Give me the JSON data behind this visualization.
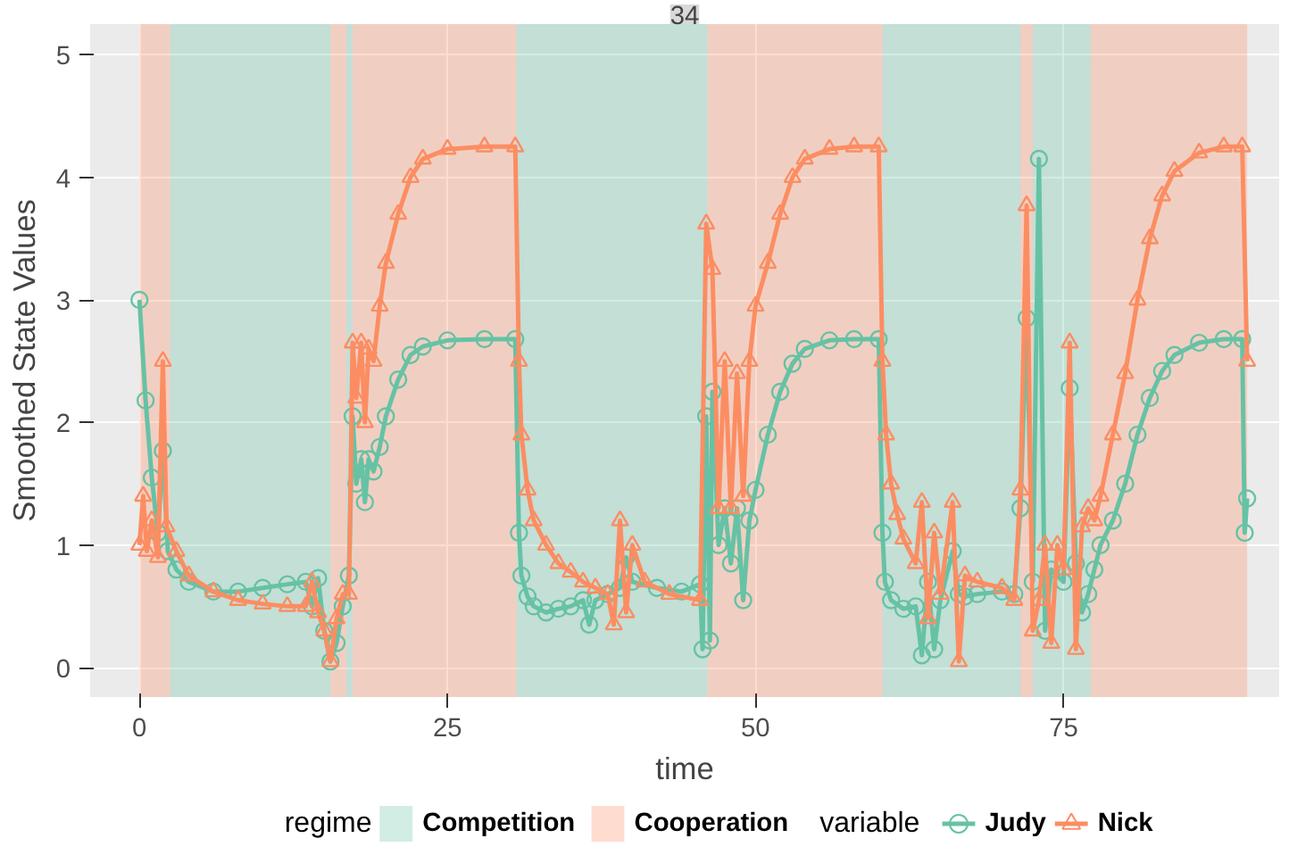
{
  "chart_data": {
    "type": "line",
    "title": "34",
    "xlabel": "time",
    "ylabel": "Smoothed State Values",
    "legend_title": "regime",
    "annotations": [
      "variable"
    ],
    "xlim": [
      -4,
      92.5
    ],
    "ylim": [
      -0.24,
      5.25
    ],
    "xticks": [
      0,
      25,
      50,
      75
    ],
    "yticks": [
      0,
      1,
      2,
      3,
      4,
      5
    ],
    "grid": true,
    "legend": "bottom",
    "bands": [
      {
        "axis": "x",
        "from": 0,
        "to": 2.5,
        "color": "#fc8d62"
      },
      {
        "axis": "x",
        "from": 2.5,
        "to": 15.5,
        "label": "Competition",
        "color": "#66c2a5"
      },
      {
        "axis": "x",
        "from": 15.5,
        "to": 16.8,
        "label": "Cooperation",
        "color": "#fc8d62"
      },
      {
        "axis": "x",
        "from": 16.8,
        "to": 17.3,
        "color": "#66c2a5"
      },
      {
        "axis": "x",
        "from": 17.3,
        "to": 30.6,
        "color": "#fc8d62"
      },
      {
        "axis": "x",
        "from": 30.6,
        "to": 46.1,
        "color": "#66c2a5"
      },
      {
        "axis": "x",
        "from": 46.1,
        "to": 60.3,
        "color": "#fc8d62"
      },
      {
        "axis": "x",
        "from": 60.3,
        "to": 71.5,
        "color": "#66c2a5"
      },
      {
        "axis": "x",
        "from": 71.5,
        "to": 72.5,
        "color": "#fc8d62"
      },
      {
        "axis": "x",
        "from": 72.5,
        "to": 77.2,
        "color": "#66c2a5"
      },
      {
        "axis": "x",
        "from": 77.2,
        "to": 89.9,
        "color": "#fc8d62"
      }
    ],
    "series": [
      {
        "name": "Judy",
        "color": "#66c2a5",
        "marker": "circle",
        "x": [
          0,
          0.5,
          1,
          1.5,
          1.9,
          2.3,
          3,
          4,
          6,
          8,
          10,
          12,
          13.5,
          14,
          14.5,
          15,
          15.5,
          16,
          16.5,
          17,
          17.3,
          17.6,
          18,
          18.3,
          18.6,
          19,
          19.5,
          20,
          21,
          22,
          23,
          25,
          28,
          30.5,
          30.8,
          31,
          31.5,
          32,
          33,
          34,
          35,
          36,
          36.5,
          37,
          38,
          39,
          39.5,
          40,
          42,
          44,
          45.5,
          45.7,
          46,
          46.3,
          46.5,
          47,
          47.5,
          48,
          48.5,
          49,
          49.5,
          50,
          51,
          52,
          53,
          54,
          56,
          58,
          60,
          60.3,
          60.5,
          61,
          62,
          63,
          63.5,
          64,
          64.5,
          65,
          66,
          66.5,
          67,
          68,
          70,
          71,
          71.5,
          72,
          72.5,
          73,
          73.5,
          74,
          75,
          75.5,
          76,
          76.5,
          77,
          77.5,
          78,
          79,
          80,
          81,
          82,
          83,
          84,
          86,
          88,
          89.5,
          89.7,
          89.9
        ],
        "values": [
          3.0,
          2.18,
          1.55,
          1.1,
          1.77,
          0.95,
          0.8,
          0.7,
          0.62,
          0.62,
          0.65,
          0.68,
          0.7,
          0.5,
          0.73,
          0.3,
          0.05,
          0.2,
          0.5,
          0.75,
          2.05,
          1.5,
          1.7,
          1.35,
          1.7,
          1.6,
          1.8,
          2.05,
          2.35,
          2.55,
          2.62,
          2.67,
          2.68,
          2.68,
          1.1,
          0.75,
          0.58,
          0.5,
          0.45,
          0.48,
          0.5,
          0.55,
          0.35,
          0.55,
          0.6,
          0.65,
          0.9,
          0.7,
          0.65,
          0.62,
          0.68,
          0.15,
          2.05,
          0.22,
          2.25,
          1.0,
          1.3,
          0.85,
          1.3,
          0.55,
          1.2,
          1.45,
          1.9,
          2.25,
          2.48,
          2.6,
          2.67,
          2.68,
          2.68,
          1.1,
          0.7,
          0.55,
          0.48,
          0.5,
          0.1,
          0.7,
          0.15,
          0.55,
          0.95,
          0.6,
          0.58,
          0.6,
          0.62,
          0.6,
          1.3,
          2.85,
          0.7,
          4.15,
          0.3,
          0.8,
          0.7,
          2.28,
          0.85,
          0.45,
          0.6,
          0.8,
          1.0,
          1.2,
          1.5,
          1.9,
          2.2,
          2.42,
          2.55,
          2.65,
          2.68,
          2.68,
          1.1,
          1.38
        ]
      },
      {
        "name": "Nick",
        "color": "#fc8d62",
        "marker": "triangle",
        "x": [
          0,
          0.3,
          0.6,
          1,
          1.5,
          1.9,
          2.2,
          3,
          4,
          6,
          8,
          10,
          12,
          13.5,
          14,
          14.5,
          15,
          15.5,
          16,
          16.5,
          17,
          17.3,
          17.6,
          18,
          18.3,
          18.6,
          19,
          19.5,
          20,
          21,
          22,
          23,
          25,
          28,
          30.5,
          30.8,
          31,
          31.5,
          32,
          33,
          34,
          35,
          36,
          37,
          38,
          38.5,
          39,
          39.5,
          40,
          41,
          43,
          45.5,
          46,
          46.5,
          47,
          47.5,
          48,
          48.5,
          49,
          49.5,
          50,
          51,
          52,
          53,
          54,
          56,
          58,
          60,
          60.3,
          60.6,
          61,
          61.5,
          62,
          63,
          63.5,
          64,
          64.5,
          65,
          66,
          66.5,
          67,
          68,
          70,
          71,
          71.5,
          72,
          72.5,
          73,
          73.5,
          74,
          74.5,
          75,
          75.5,
          76,
          76.5,
          77,
          77.5,
          78,
          79,
          80,
          81,
          82,
          83,
          84,
          86,
          88,
          89.5,
          89.9
        ],
        "values": [
          1.0,
          1.4,
          0.95,
          1.2,
          0.9,
          2.5,
          1.15,
          0.95,
          0.75,
          0.62,
          0.55,
          0.52,
          0.5,
          0.5,
          0.7,
          0.45,
          0.3,
          0.05,
          0.4,
          0.6,
          0.6,
          2.65,
          2.2,
          2.65,
          2.0,
          2.6,
          2.5,
          2.95,
          3.3,
          3.7,
          4.0,
          4.15,
          4.23,
          4.25,
          4.25,
          2.5,
          1.9,
          1.45,
          1.2,
          1.0,
          0.85,
          0.78,
          0.7,
          0.65,
          0.6,
          0.35,
          1.2,
          0.45,
          1.0,
          0.7,
          0.6,
          0.55,
          3.62,
          3.25,
          1.3,
          2.5,
          1.3,
          2.4,
          1.4,
          2.5,
          2.95,
          3.3,
          3.7,
          4.0,
          4.15,
          4.23,
          4.25,
          4.25,
          2.5,
          1.9,
          1.5,
          1.25,
          1.05,
          0.85,
          1.35,
          0.4,
          1.1,
          0.6,
          1.35,
          0.05,
          0.75,
          0.7,
          0.65,
          0.55,
          1.45,
          3.77,
          0.3,
          0.55,
          1.0,
          0.2,
          1.0,
          0.8,
          2.65,
          0.15,
          1.15,
          1.3,
          1.2,
          1.4,
          1.9,
          2.4,
          3.0,
          3.5,
          3.85,
          4.05,
          4.2,
          4.25,
          4.25,
          2.5
        ]
      }
    ]
  }
}
